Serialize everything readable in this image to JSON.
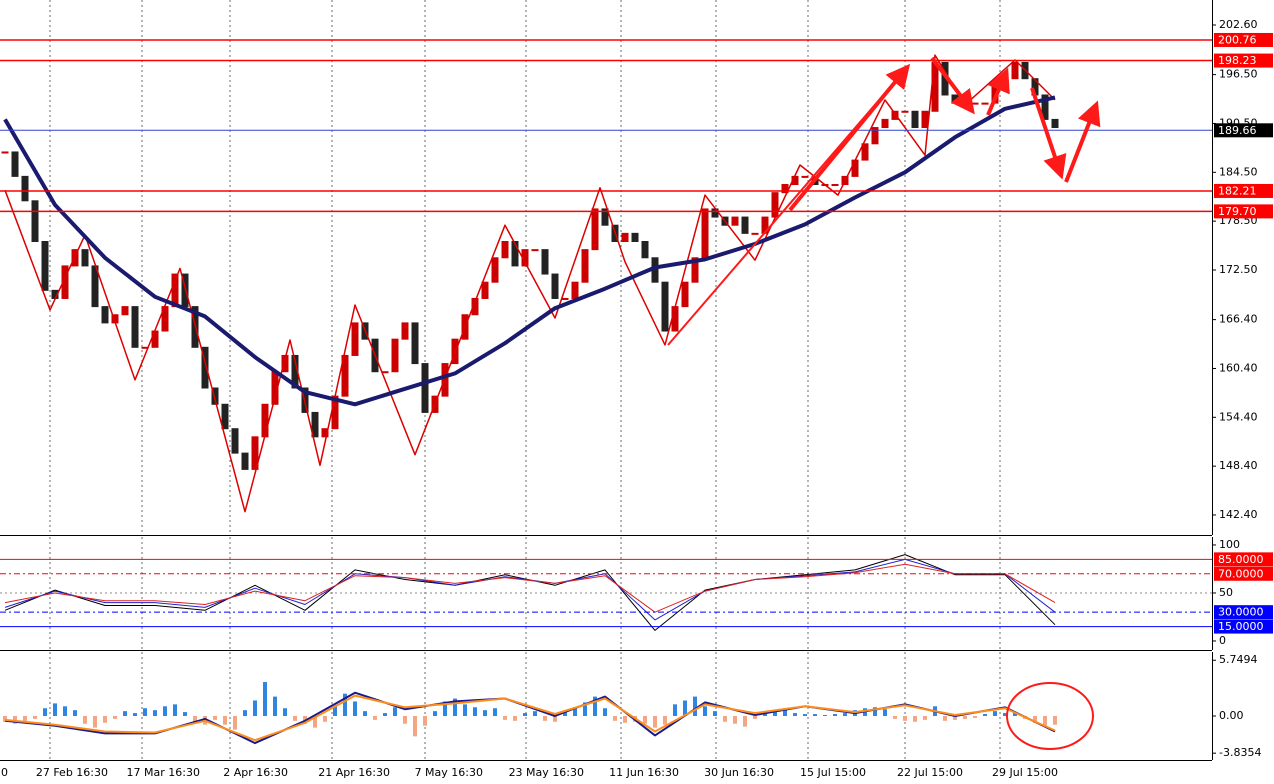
{
  "chart_data": [
    {
      "type": "candlestick",
      "closes": [
        187,
        184,
        181,
        176,
        170,
        169,
        173,
        175,
        173,
        168,
        166,
        167,
        168,
        163,
        163,
        165,
        168,
        172,
        168,
        163,
        158,
        156,
        153,
        150,
        148,
        152,
        156,
        160,
        162,
        158,
        155,
        152,
        153,
        157,
        162,
        166,
        164,
        160,
        160,
        164,
        166,
        161,
        155,
        157,
        161,
        164,
        167,
        169,
        171,
        174,
        176,
        173,
        175,
        175,
        172,
        169,
        169,
        171,
        175,
        180,
        178,
        176,
        177,
        176,
        174,
        171,
        165,
        168,
        171,
        174,
        180,
        179,
        178,
        179,
        177,
        177,
        179,
        182,
        183,
        184,
        184,
        183,
        183,
        183,
        184,
        186,
        188,
        190,
        191,
        192,
        192,
        190,
        192,
        198,
        194,
        193,
        193,
        193,
        193,
        195,
        196,
        198,
        196,
        194,
        191,
        190
      ],
      "up_color": "#cc0000",
      "down_color": "#222222",
      "ma": {
        "x": [
          0,
          5,
          10,
          15,
          20,
          25,
          30,
          35,
          40,
          45,
          50,
          55,
          60,
          65,
          70,
          75,
          80,
          85,
          90,
          95,
          100,
          105
        ],
        "values": [
          191,
          180.5,
          174,
          169.2,
          166.8,
          161.8,
          157.5,
          156,
          157.9,
          159.8,
          163.5,
          167.8,
          170.2,
          172.8,
          173.8,
          175.7,
          178.1,
          181.4,
          184.5,
          188.8,
          192.3,
          193.7
        ],
        "color": "#1a1a6e"
      },
      "zigzag": {
        "x": [
          0,
          4.5,
          8,
          13,
          17.5,
          24,
          28.5,
          31.5,
          35,
          41,
          50,
          55,
          59.5,
          62,
          66,
          70,
          75,
          79.5,
          83.3,
          88,
          92,
          93,
          96,
          101,
          105
        ],
        "values": [
          182.3,
          167.6,
          176.8,
          159,
          172.7,
          142.8,
          163.9,
          148.5,
          168.2,
          149.8,
          178,
          166.6,
          182.6,
          173.5,
          163.3,
          181.7,
          173.7,
          185.4,
          181.7,
          193.4,
          186.6,
          198.9,
          192.8,
          198.3,
          193.4
        ],
        "color": "#dd0000"
      },
      "levels": [
        {
          "value": 200.76,
          "color": "#ff0000",
          "box": "#ff0000"
        },
        {
          "value": 198.23,
          "color": "#ff0000",
          "box": "#ff0000"
        },
        {
          "value": 189.66,
          "color": "#3344cc",
          "box": "#000000"
        },
        {
          "value": 182.21,
          "color": "#ff0000",
          "box": "#ff0000"
        },
        {
          "value": 179.7,
          "label": "179.70",
          "color": "#ff0000",
          "box": "#ff0000"
        }
      ],
      "ylim": [
        139.94,
        205.67
      ],
      "yticks": [
        {
          "value": 202.6,
          "label": "202.60"
        },
        {
          "value": 196.5,
          "label": "196.50"
        },
        {
          "value": 190.5,
          "label": "190.50"
        },
        {
          "value": 184.5,
          "label": "184.50"
        },
        {
          "value": 178.5,
          "label": "178.50"
        },
        {
          "value": 172.5,
          "label": "172.50"
        },
        {
          "value": 166.4,
          "label": "166.40"
        },
        {
          "value": 160.4,
          "label": "160.40"
        },
        {
          "value": 154.4,
          "label": "154.40"
        },
        {
          "value": 148.4,
          "label": "148.40"
        },
        {
          "value": 142.4,
          "label": "142.40"
        }
      ],
      "xlim": [
        -0.5,
        120.7
      ],
      "xticks": [
        {
          "value": -5.5,
          "label": "0"
        },
        {
          "value": 4.5,
          "label": "27 Feb 16:30"
        },
        {
          "value": 13.7,
          "label": "17 Mar 16:30"
        },
        {
          "value": 22.5,
          "label": "2 Apr 16:30"
        },
        {
          "value": 32.7,
          "label": "21 Apr 16:30"
        },
        {
          "value": 42,
          "label": "7 May 16:30"
        },
        {
          "value": 52.1,
          "label": "23 May 16:30"
        },
        {
          "value": 61.6,
          "label": "11 Jun 16:30"
        },
        {
          "value": 71.1,
          "label": "30 Jun 16:30"
        },
        {
          "value": 80.3,
          "label": "15 Jul 15:00"
        },
        {
          "value": 90,
          "label": "22 Jul 15:00"
        },
        {
          "value": 99.5,
          "label": "29 Jul 15:00"
        }
      ]
    },
    {
      "type": "line",
      "x": [
        0,
        5,
        10,
        15,
        20,
        25,
        30,
        35,
        40,
        45,
        50,
        55,
        60,
        65,
        70,
        75,
        80,
        85,
        90,
        95,
        100,
        105
      ],
      "series": [
        {
          "color": "#000000",
          "values": [
            32,
            53,
            37,
            37,
            32,
            58,
            32,
            74,
            64,
            58,
            69,
            58,
            74,
            11,
            53,
            64,
            69,
            74,
            90,
            69,
            69,
            17
          ]
        },
        {
          "color": "#2222cc",
          "values": [
            35,
            52,
            40,
            40,
            35,
            55,
            38,
            70,
            66,
            58,
            67,
            60,
            70,
            22,
            52,
            64,
            68,
            72,
            85,
            70,
            70,
            30
          ]
        },
        {
          "color": "#dd2222",
          "values": [
            40,
            50,
            42,
            42,
            38,
            52,
            42,
            68,
            66,
            60,
            66,
            60,
            68,
            30,
            52,
            64,
            67,
            71,
            80,
            70,
            70,
            40
          ]
        }
      ],
      "levels": [
        {
          "value": 85,
          "label": "85.0000",
          "color": "#ff0000",
          "box": "#ff0000",
          "dash": false
        },
        {
          "value": 70,
          "label": "70.0000",
          "color": "#ff0000",
          "box": "#ff0000",
          "dash": true
        },
        {
          "value": 30,
          "label": "30.0000",
          "color": "#0000ff",
          "box": "#0000ff",
          "dash": true
        },
        {
          "value": 15,
          "label": "15.0000",
          "color": "#0000ff",
          "box": "#0000ff",
          "dash": false
        }
      ],
      "ylim": [
        -9.4,
        108.3
      ],
      "yticks": [
        100,
        50,
        0
      ],
      "xlim": [
        -0.5,
        120.7
      ]
    },
    {
      "type": "macd",
      "histogram": {
        "values": [
          -0.6,
          -0.8,
          -0.5,
          -0.3,
          0.8,
          1.3,
          1.0,
          0.6,
          -0.8,
          -1.2,
          -0.7,
          -0.3,
          0.5,
          0.3,
          0.8,
          0.6,
          1.0,
          1.2,
          0.4,
          -0.6,
          -0.9,
          -0.4,
          -0.9,
          -1.4,
          0.6,
          1.6,
          3.5,
          2.0,
          0.8,
          -0.5,
          -0.8,
          -1.2,
          -0.6,
          1.0,
          2.3,
          1.5,
          0.5,
          -0.4,
          0.3,
          0.9,
          -0.8,
          -2.1,
          -1.0,
          0.5,
          1.5,
          1.8,
          1.2,
          0.9,
          0.6,
          0.8,
          -0.4,
          -0.5,
          0.3,
          0.5,
          -0.5,
          -0.6,
          0.4,
          0.9,
          1.4,
          2.0,
          0.8,
          -0.5,
          -0.7,
          -0.6,
          -0.8,
          -1.2,
          -0.9,
          1.2,
          1.6,
          2.0,
          1.0,
          0.5,
          -0.6,
          -0.8,
          -1.1,
          -0.3,
          0.4,
          0.6,
          0.8,
          0.3,
          0.2,
          0.2,
          0.1,
          0.2,
          0.3,
          0.6,
          0.8,
          0.9,
          0.7,
          -0.3,
          -0.5,
          -0.6,
          -0.4,
          1.0,
          -0.5,
          -0.4,
          -0.3,
          -0.2,
          0.2,
          0.5,
          0.3,
          0.4,
          -0.3,
          -0.7,
          -1.0,
          -0.9
        ],
        "up_color": "#2f86e0",
        "down_color": "#f4a582"
      },
      "x": [
        0,
        5,
        10,
        15,
        20,
        25,
        30,
        35,
        40,
        45,
        50,
        55,
        60,
        65,
        70,
        75,
        80,
        85,
        90,
        95,
        100,
        105
      ],
      "series": [
        {
          "color": "#1a1a8c",
          "values": [
            -0.5,
            -1.0,
            -1.8,
            -1.8,
            -0.3,
            -2.8,
            -0.5,
            2.4,
            0.7,
            1.5,
            1.8,
            0.0,
            2.0,
            -2.0,
            1.4,
            0.1,
            1.0,
            0.3,
            1.2,
            0.0,
            0.9,
            -1.6
          ]
        },
        {
          "color": "#ff8c1a",
          "values": [
            -0.4,
            -0.9,
            -1.6,
            -1.7,
            -0.5,
            -2.5,
            -0.7,
            2.1,
            0.9,
            1.3,
            1.8,
            0.2,
            1.8,
            -1.6,
            1.2,
            0.3,
            1.0,
            0.4,
            1.1,
            0.1,
            0.8,
            -1.5
          ]
        }
      ],
      "ylim": [
        -4.54,
        6.6
      ],
      "yticks": [
        5.7494,
        {
          "value": 0,
          "label": "0.00"
        },
        -3.8354
      ],
      "xlim": [
        -0.5,
        120.7
      ]
    }
  ]
}
